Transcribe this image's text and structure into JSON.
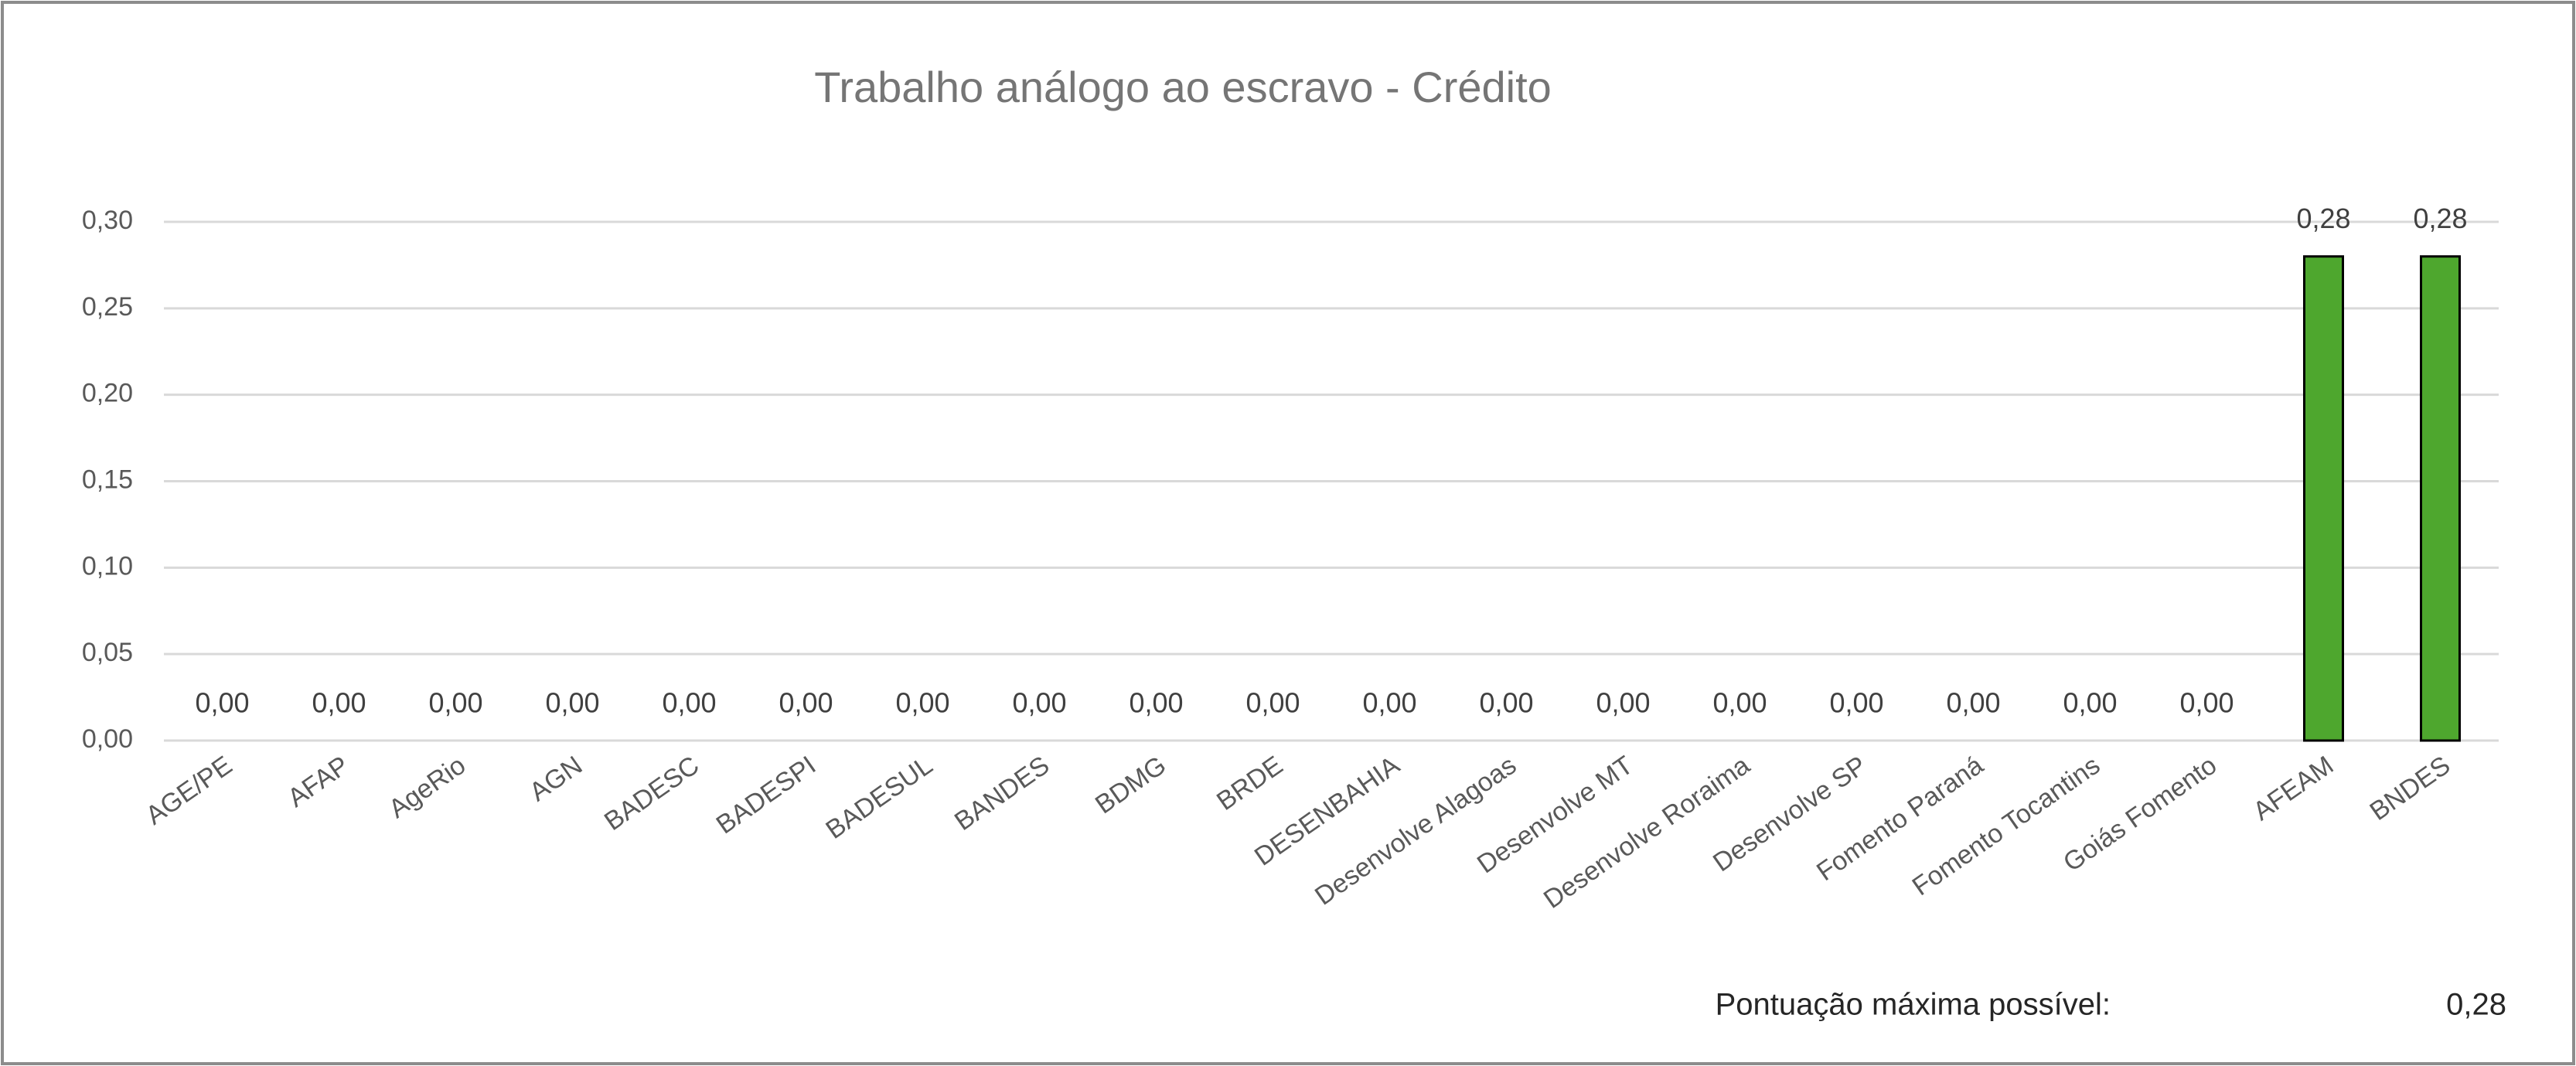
{
  "chart_data": {
    "type": "bar",
    "title": "Trabalho análogo ao escravo - Crédito",
    "categories": [
      "AGE/PE",
      "AFAP",
      "AgeRio",
      "AGN",
      "BADESC",
      "BADESPI",
      "BADESUL",
      "BANDES",
      "BDMG",
      "BRDE",
      "DESENBAHIA",
      "Desenvolve Alagoas",
      "Desenvolve MT",
      "Desenvolve Roraima",
      "Desenvolve SP",
      "Fomento Paraná",
      "Fomento Tocantins",
      "Goiás Fomento",
      "AFEAM",
      "BNDES"
    ],
    "values": [
      0,
      0,
      0,
      0,
      0,
      0,
      0,
      0,
      0,
      0,
      0,
      0,
      0,
      0,
      0,
      0,
      0,
      0,
      0.28,
      0.28
    ],
    "value_labels": [
      "0,00",
      "0,00",
      "0,00",
      "0,00",
      "0,00",
      "0,00",
      "0,00",
      "0,00",
      "0,00",
      "0,00",
      "0,00",
      "0,00",
      "0,00",
      "0,00",
      "0,00",
      "0,00",
      "0,00",
      "0,00",
      "0,28",
      "0,28"
    ],
    "color": "#4ea72e",
    "ylim": [
      0,
      0.3
    ],
    "yticks": [
      {
        "value": 0,
        "label": "0,00"
      },
      {
        "value": 0.05,
        "label": "0,05"
      },
      {
        "value": 0.1,
        "label": "0,10"
      },
      {
        "value": 0.15,
        "label": "0,15"
      },
      {
        "value": 0.2,
        "label": "0,20"
      },
      {
        "value": 0.25,
        "label": "0,25"
      },
      {
        "value": 0.3,
        "label": "0,30"
      }
    ],
    "grid": true,
    "annotation": {
      "label": "Pontuação máxima possível:",
      "value_label": "0,28"
    }
  }
}
